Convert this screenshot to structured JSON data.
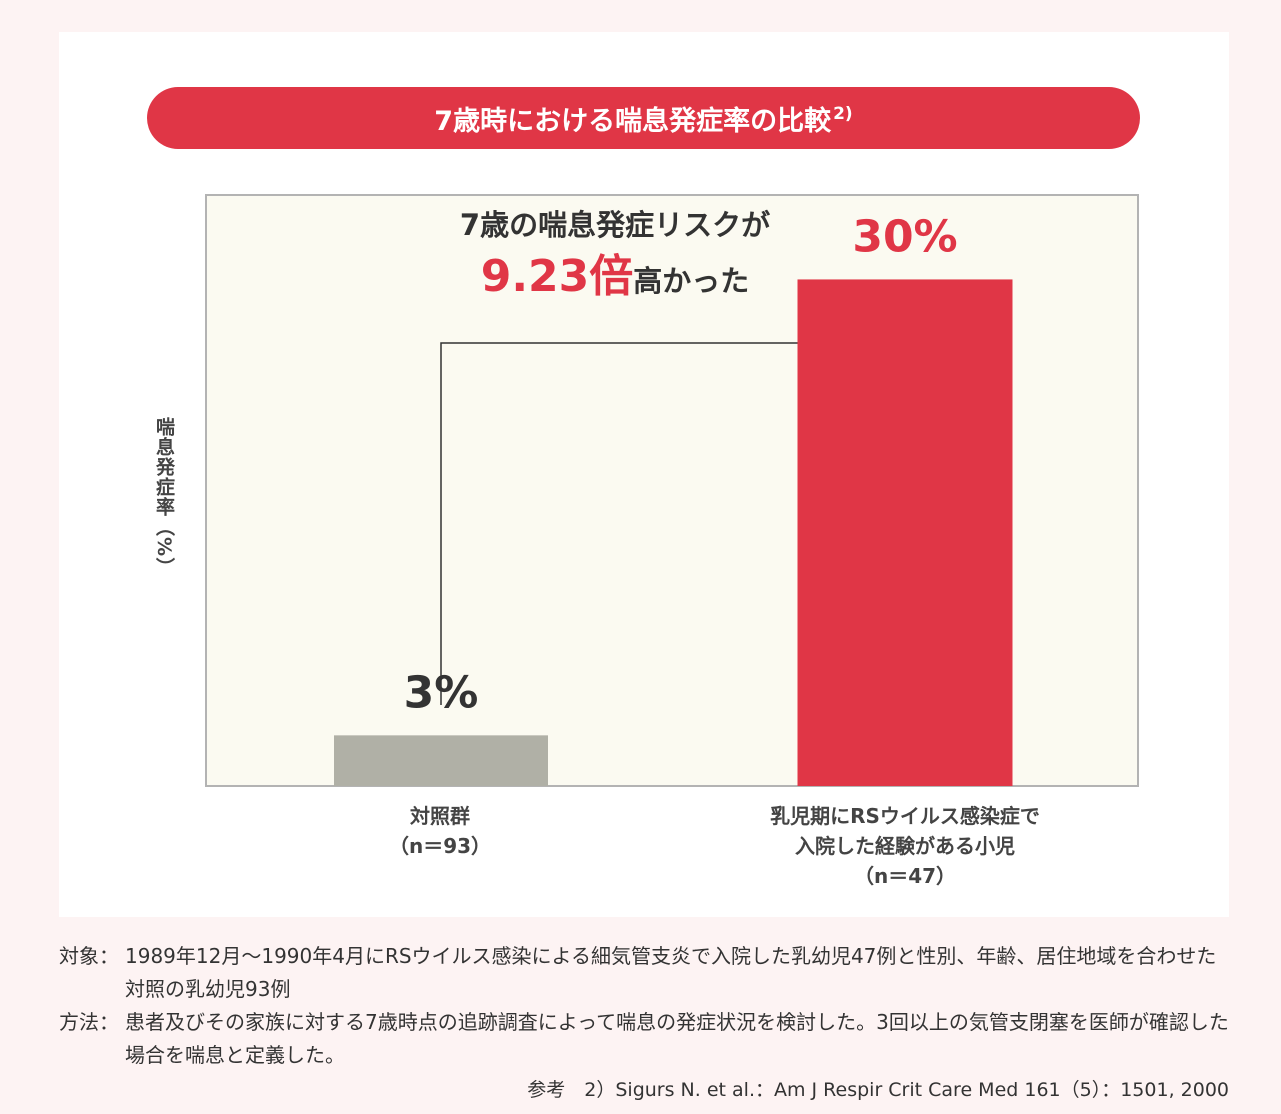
{
  "chart_data": {
    "type": "bar",
    "title": "7歳時における喘息発症率の比較",
    "title_ref": "2)",
    "ylabel": "喘息発症率（%）",
    "ylim": [
      0,
      35
    ],
    "categories": [
      {
        "label": "対照群",
        "n": "（n＝93）"
      },
      {
        "label": "乳児期にRSウイルス感染症で",
        "label2": "入院した経験がある小児",
        "n": "（n＝47）"
      }
    ],
    "values": [
      3,
      30
    ],
    "data_labels": [
      "3%",
      "30%"
    ],
    "colors": [
      "#b0b0a6",
      "#e03646"
    ],
    "annotation": {
      "line1": "7歳の喘息発症リスクが",
      "highlight": "9.23倍",
      "line2_rest": "高かった"
    },
    "grid": false
  },
  "footnotes": {
    "subject_key": "対象：",
    "subject_text": "1989年12月〜1990年4月にRSウイルス感染による細気管支炎で入院した乳幼児47例と性別、年齢、居住地域を合わせた対照の乳幼児93例",
    "method_key": "方法：",
    "method_text": "患者及びその家族に対する7歳時点の追跡調査によって喘息の発症状況を検討した。3回以上の気管支閉塞を医師が確認した場合を喘息と定義した。",
    "reference": "参考　2）Sigurs N. et al.：Am J Respir Crit Care Med 161（5）：1501, 2000"
  }
}
